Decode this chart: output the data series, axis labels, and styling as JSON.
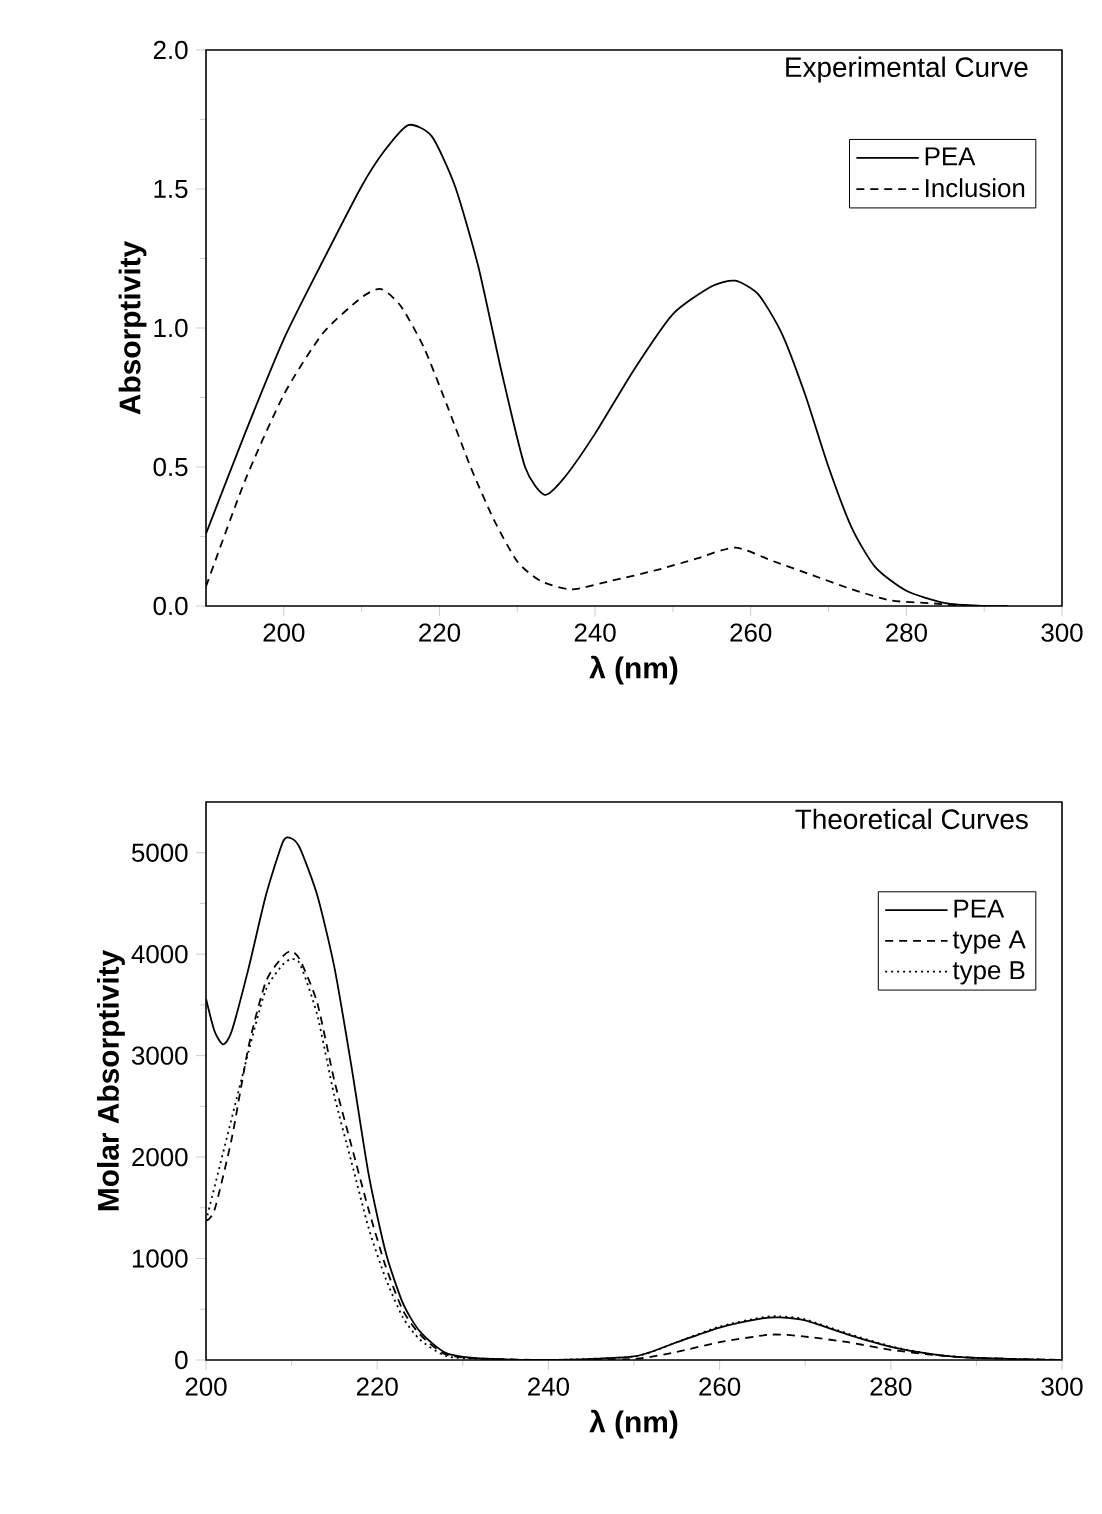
{
  "chart_data": [
    {
      "type": "line",
      "title": "Experimental Curve",
      "xlabel": "λ (nm)",
      "ylabel": "Absorptivity",
      "xlim": [
        190,
        300
      ],
      "xticks": [
        200,
        220,
        240,
        260,
        280,
        300
      ],
      "ylim": [
        0,
        2.0
      ],
      "yticks": [
        {
          "value": 0,
          "label": "0.0"
        },
        {
          "value": 0.5,
          "label": "0.5"
        },
        {
          "value": 1.0,
          "label": "1.0"
        },
        {
          "value": 1.5,
          "label": "1.5"
        },
        {
          "value": 2.0,
          "label": "2.0"
        }
      ],
      "grid": false,
      "legend": "top right",
      "marker": "none",
      "series": [
        {
          "name": "PEA",
          "color": "#000000",
          "line_style": "solid",
          "x": [
            190,
            195,
            200,
            205,
            210,
            213,
            216,
            219,
            222,
            225,
            228,
            231,
            233.5,
            236,
            240,
            245,
            250,
            255,
            258,
            261,
            264,
            267,
            270,
            273,
            276,
            280,
            285,
            290,
            293
          ],
          "values": [
            0.26,
            0.62,
            0.96,
            1.24,
            1.51,
            1.64,
            1.73,
            1.69,
            1.51,
            1.22,
            0.84,
            0.5,
            0.4,
            0.46,
            0.62,
            0.85,
            1.05,
            1.15,
            1.17,
            1.12,
            0.98,
            0.76,
            0.5,
            0.28,
            0.14,
            0.055,
            0.01,
            0.0,
            0.0
          ]
        },
        {
          "name": "Inclusion",
          "color": "#000000",
          "line_style": "dashed",
          "x": [
            190,
            195,
            200,
            205,
            210,
            212.5,
            215,
            218,
            221,
            224,
            227,
            230,
            233,
            237,
            242,
            248,
            253,
            258,
            263,
            268,
            273,
            278,
            283,
            288
          ],
          "values": [
            0.07,
            0.45,
            0.76,
            0.98,
            1.11,
            1.14,
            1.08,
            0.93,
            0.72,
            0.5,
            0.31,
            0.16,
            0.09,
            0.06,
            0.09,
            0.13,
            0.17,
            0.21,
            0.16,
            0.11,
            0.06,
            0.02,
            0.01,
            0.0
          ]
        }
      ]
    },
    {
      "type": "line",
      "title": "Theoretical Curves",
      "xlabel": "λ (nm)",
      "ylabel": "Molar Absorptivity",
      "xlim": [
        200,
        300
      ],
      "xticks": [
        200,
        220,
        240,
        260,
        280,
        300
      ],
      "ylim": [
        0,
        5500
      ],
      "yticks": [
        0,
        1000,
        2000,
        3000,
        4000,
        5000
      ],
      "grid": false,
      "legend": "top right",
      "marker": "none",
      "series": [
        {
          "name": "PEA",
          "color": "#000000",
          "line_style": "solid",
          "x": [
            200,
            201,
            202,
            203,
            205,
            207,
            209,
            210,
            211,
            213,
            215,
            217,
            219,
            221,
            223,
            225,
            228,
            232,
            240,
            250,
            255,
            260,
            265,
            267,
            270,
            275,
            280,
            285,
            290,
            300
          ],
          "values": [
            3560,
            3240,
            3110,
            3240,
            3870,
            4580,
            5110,
            5140,
            5040,
            4580,
            3870,
            2890,
            1830,
            1060,
            560,
            280,
            70,
            15,
            0,
            35,
            175,
            320,
            410,
            420,
            390,
            250,
            130,
            55,
            20,
            0
          ]
        },
        {
          "name": "type A",
          "color": "#000000",
          "line_style": "dashed",
          "x": [
            200,
            201,
            203,
            205,
            207,
            209,
            210,
            211,
            213,
            215,
            217,
            219,
            221,
            223,
            225,
            228,
            232,
            240,
            250,
            255,
            260,
            266,
            270,
            275,
            280,
            285,
            290,
            300
          ],
          "values": [
            1370,
            1480,
            2180,
            3100,
            3730,
            3980,
            4030,
            3940,
            3520,
            2750,
            2110,
            1480,
            920,
            490,
            250,
            55,
            15,
            0,
            10,
            80,
            175,
            250,
            230,
            175,
            100,
            50,
            20,
            0
          ]
        },
        {
          "name": "type B",
          "color": "#000000",
          "line_style": "dotted",
          "x": [
            200,
            205,
            207,
            209,
            210,
            211,
            213,
            215,
            217,
            219,
            221,
            223,
            225,
            228,
            232,
            240,
            250,
            255,
            260,
            265,
            267,
            270,
            275,
            280,
            285,
            290,
            300
          ],
          "values": [
            1370,
            3050,
            3650,
            3900,
            3950,
            3900,
            3400,
            2600,
            1950,
            1300,
            800,
            420,
            200,
            40,
            10,
            0,
            35,
            175,
            330,
            420,
            430,
            400,
            260,
            135,
            55,
            20,
            0
          ]
        }
      ]
    }
  ]
}
